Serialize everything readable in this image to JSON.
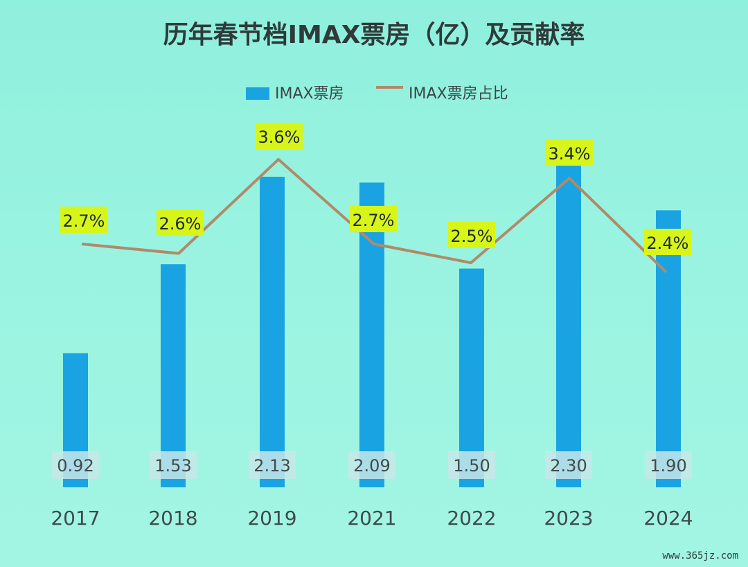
{
  "chart_data": {
    "type": "bar",
    "title": "历年春节档IMAX票房（亿）及贡献率",
    "categories": [
      "2017",
      "2018",
      "2019",
      "2021",
      "2022",
      "2023",
      "2024"
    ],
    "series": [
      {
        "name": "IMAX票房",
        "type": "bar",
        "values": [
          0.92,
          1.53,
          2.13,
          2.09,
          1.5,
          2.3,
          1.9
        ],
        "labels": [
          "0.92",
          "1.53",
          "2.13",
          "2.09",
          "1.50",
          "2.30",
          "1.90"
        ]
      },
      {
        "name": "IMAX票房占比",
        "type": "line",
        "values": [
          2.7,
          2.6,
          3.6,
          2.7,
          2.5,
          3.4,
          2.4
        ],
        "labels": [
          "2.7%",
          "2.6%",
          "3.6%",
          "2.7%",
          "2.5%",
          "3.4%",
          "2.4%"
        ]
      }
    ],
    "ylim_bar": [
      0,
      2.4
    ],
    "ylim_line": [
      1.5,
      4.0
    ],
    "grid": false,
    "legend": "top"
  },
  "colors": {
    "bar": "#1aa3e2",
    "line": "#b08a6a",
    "highlight": "#d8f51a"
  },
  "watermark": "www.365jz.com"
}
